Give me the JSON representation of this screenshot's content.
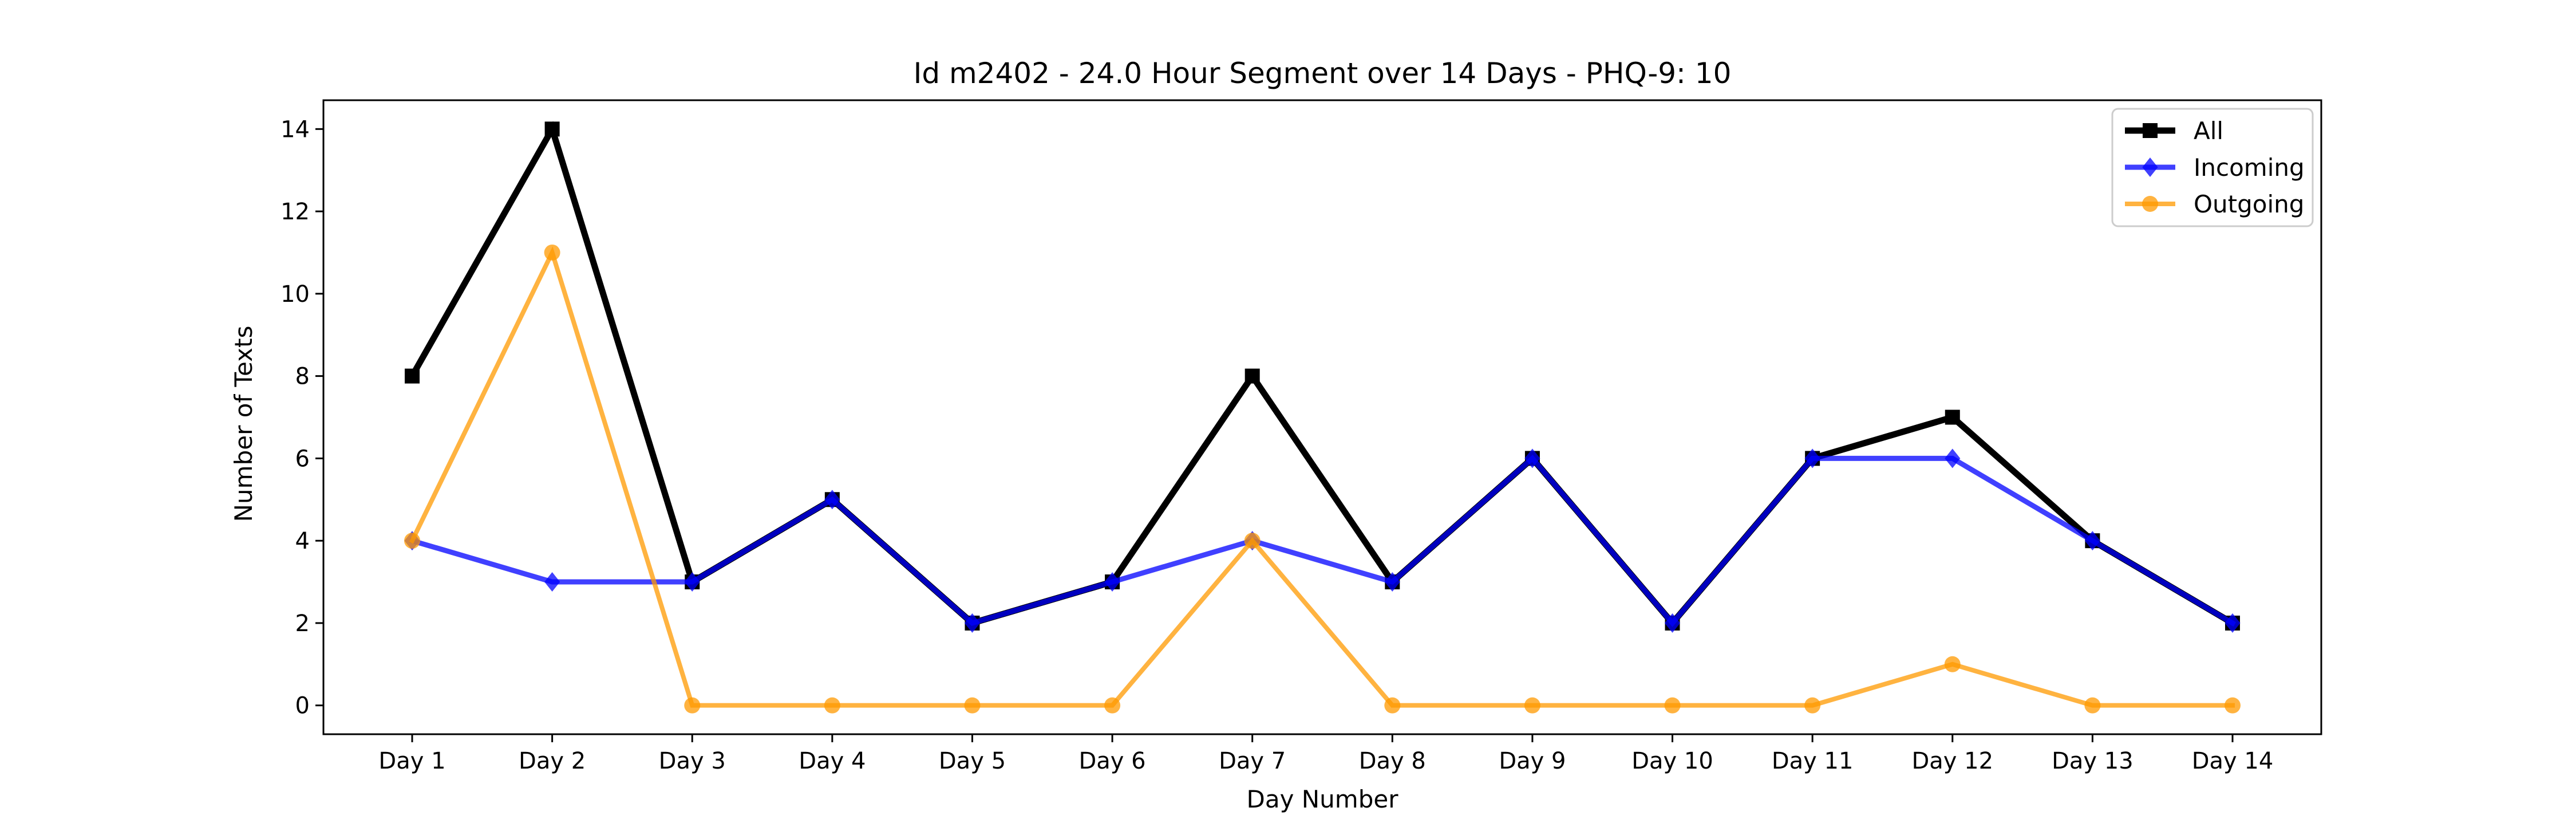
{
  "chart_data": {
    "type": "line",
    "title": "Id m2402 - 24.0 Hour Segment over 14 Days - PHQ-9: 10",
    "xlabel": "Day Number",
    "ylabel": "Number of Texts",
    "categories": [
      "Day 1",
      "Day 2",
      "Day 3",
      "Day 4",
      "Day 5",
      "Day 6",
      "Day 7",
      "Day 8",
      "Day 9",
      "Day 10",
      "Day 11",
      "Day 12",
      "Day 13",
      "Day 14"
    ],
    "ylim": [
      -0.7,
      14.7
    ],
    "yticks": [
      0,
      2,
      4,
      6,
      8,
      10,
      12,
      14
    ],
    "grid": false,
    "legend_position": "top-right",
    "series": [
      {
        "name": "All",
        "values": [
          8,
          14,
          3,
          5,
          2,
          3,
          8,
          3,
          6,
          2,
          6,
          7,
          4,
          2
        ],
        "color": "#000000",
        "marker": "square"
      },
      {
        "name": "Incoming",
        "values": [
          4,
          3,
          3,
          5,
          2,
          3,
          4,
          3,
          6,
          2,
          6,
          6,
          4,
          2
        ],
        "color": "#0000ff",
        "marker": "diamond"
      },
      {
        "name": "Outgoing",
        "values": [
          4,
          11,
          0,
          0,
          0,
          0,
          4,
          0,
          0,
          0,
          0,
          1,
          0,
          0
        ],
        "color": "#ff9900",
        "marker": "circle"
      }
    ]
  }
}
